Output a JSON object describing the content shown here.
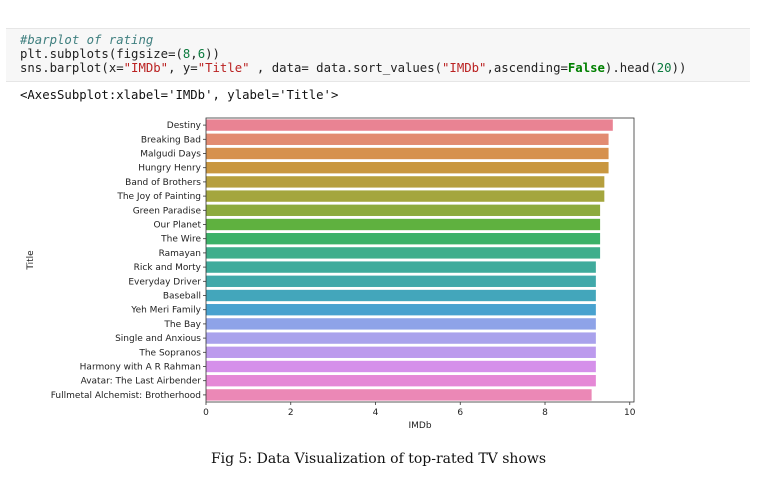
{
  "code": {
    "comment": "#barplot of rating",
    "line2_a": "plt.subplots(figsize=(",
    "line2_num1": "8",
    "line2_sep": ",",
    "line2_num2": "6",
    "line2_end": "))",
    "line3_a": "sns.barplot(x=",
    "line3_x": "\"IMDb\"",
    "line3_b": ", y=",
    "line3_y": "\"Title\"",
    "line3_c": " , data= data.sort_values(",
    "line3_s": "\"IMDb\"",
    "line3_d": ",ascending=",
    "line3_false": "False",
    "line3_e": ").head(",
    "line3_n": "20",
    "line3_f": "))"
  },
  "output": "<AxesSubplot:xlabel='IMDb', ylabel='Title'>",
  "caption": "Fig 5: Data Visualization of top-rated TV shows",
  "chart_data": {
    "type": "bar",
    "orientation": "horizontal",
    "xlabel": "IMDb",
    "ylabel": "Title",
    "xlim": [
      0,
      10.1
    ],
    "xticks": [
      0,
      2,
      4,
      6,
      8,
      10
    ],
    "grid": false,
    "categories": [
      "Destiny",
      "Breaking Bad",
      "Malgudi Days",
      "Hungry Henry",
      "Band of Brothers",
      "The Joy of Painting",
      "Green Paradise",
      "Our Planet",
      "The Wire",
      "Ramayan",
      "Rick and Morty",
      "Everyday Driver",
      "Baseball",
      "Yeh Meri Family",
      "The Bay",
      "Single and Anxious",
      "The Sopranos",
      "Harmony with A R Rahman",
      "Avatar: The Last Airbender",
      "Fullmetal Alchemist: Brotherhood"
    ],
    "values": [
      9.6,
      9.5,
      9.5,
      9.5,
      9.4,
      9.4,
      9.3,
      9.3,
      9.3,
      9.3,
      9.2,
      9.2,
      9.2,
      9.2,
      9.2,
      9.2,
      9.2,
      9.2,
      9.2,
      9.1
    ],
    "colors": [
      "#e98393",
      "#e28b71",
      "#d6914e",
      "#c99740",
      "#b69f3e",
      "#a4a63e",
      "#8dab3e",
      "#5fb13f",
      "#3cb168",
      "#3fae8c",
      "#40ab9c",
      "#41a9aa",
      "#43a6bb",
      "#48a2cf",
      "#8ea3e8",
      "#a9a2ec",
      "#bc9aed",
      "#d590ea",
      "#e588d6",
      "#eb88b6"
    ]
  }
}
